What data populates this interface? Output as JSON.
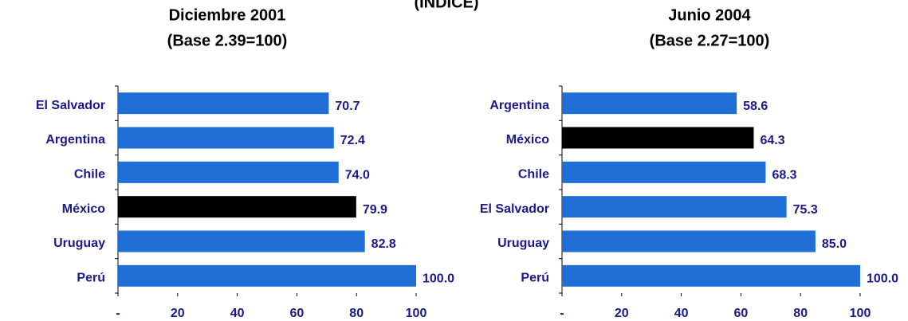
{
  "title": "(INDICE)",
  "chart_data": [
    {
      "type": "bar",
      "orientation": "horizontal",
      "title": "Diciembre 2001",
      "subtitle": "(Base 2.39=100)",
      "categories": [
        "El Salvador",
        "Argentina",
        "Chile",
        "México",
        "Uruguay",
        "Perú"
      ],
      "values": [
        70.7,
        72.4,
        74.0,
        79.9,
        82.8,
        100.0
      ],
      "value_labels": [
        "70.7",
        "72.4",
        "74.0",
        "79.9",
        "82.8",
        "100.0"
      ],
      "colors": [
        "#1f6fd6",
        "#1f6fd6",
        "#1f6fd6",
        "#000000",
        "#1f6fd6",
        "#1f6fd6"
      ],
      "xlim": [
        0,
        100
      ],
      "xticks": [
        {
          "value": 0,
          "label": "-"
        },
        20,
        40,
        60,
        80,
        100
      ]
    },
    {
      "type": "bar",
      "orientation": "horizontal",
      "title": "Junio 2004",
      "subtitle": "(Base 2.27=100)",
      "categories": [
        "Argentina",
        "México",
        "Chile",
        "El Salvador",
        "Uruguay",
        "Perú"
      ],
      "values": [
        58.6,
        64.3,
        68.3,
        75.3,
        85.0,
        100.0
      ],
      "value_labels": [
        "58.6",
        "64.3",
        "68.3",
        "75.3",
        "85.0",
        "100.0"
      ],
      "colors": [
        "#1f6fd6",
        "#000000",
        "#1f6fd6",
        "#1f6fd6",
        "#1f6fd6",
        "#1f6fd6"
      ],
      "xlim": [
        0,
        100
      ],
      "xticks": [
        {
          "value": 0,
          "label": "-"
        },
        20,
        40,
        60,
        80,
        100
      ]
    }
  ]
}
